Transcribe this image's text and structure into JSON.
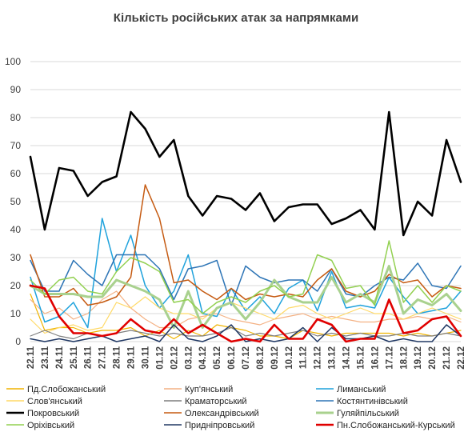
{
  "chart_data": {
    "type": "line",
    "title": "Кількість російських атак за напрямками",
    "xlabel": "",
    "ylabel": "",
    "ylim": [
      0,
      100
    ],
    "yticks": [
      0,
      10,
      20,
      30,
      40,
      50,
      60,
      70,
      80,
      90,
      100
    ],
    "grid": true,
    "legend_position": "bottom",
    "x": [
      "22.11",
      "23.11",
      "24.11",
      "25.11",
      "26.11",
      "27.11",
      "28.11",
      "29.11",
      "30.11",
      "01.12",
      "02.12",
      "03.12",
      "04.12",
      "05.12",
      "06.12",
      "07.12",
      "08.12",
      "09.12",
      "10.12",
      "11.12",
      "12.12",
      "13.12",
      "14.12",
      "15.12",
      "16.12",
      "17.12",
      "18.12",
      "19.12",
      "20.12",
      "21.12",
      "22.12"
    ],
    "series": [
      {
        "name": "Пд.Слобожанський",
        "color": "#f0b400",
        "width": 1.2,
        "values": [
          17,
          4,
          5,
          5,
          3,
          4,
          4,
          5,
          2,
          4,
          1,
          4,
          2,
          6,
          5,
          4,
          2,
          2,
          1,
          4,
          3,
          2,
          3,
          3,
          3,
          3,
          2,
          3,
          2,
          3,
          4
        ]
      },
      {
        "name": "Куп'янський",
        "color": "#f4b183",
        "width": 1.2,
        "values": [
          15,
          10,
          12,
          8,
          10,
          15,
          18,
          12,
          8,
          5,
          5,
          8,
          9,
          10,
          8,
          7,
          6,
          8,
          9,
          10,
          8,
          9,
          8,
          7,
          7,
          8,
          8,
          9,
          8,
          9,
          7
        ]
      },
      {
        "name": "Лиманський",
        "color": "#1fa2dc",
        "width": 1.5,
        "values": [
          23,
          7,
          9,
          14,
          5,
          44,
          25,
          38,
          20,
          12,
          18,
          31,
          10,
          9,
          19,
          11,
          16,
          10,
          19,
          22,
          11,
          25,
          12,
          13,
          12,
          23,
          16,
          10,
          11,
          12,
          18
        ]
      },
      {
        "name": "Слов'янський",
        "color": "#ffd966",
        "width": 1.2,
        "values": [
          8,
          3,
          5,
          6,
          4,
          5,
          14,
          12,
          16,
          12,
          10,
          10,
          8,
          12,
          14,
          12,
          10,
          8,
          12,
          13,
          10,
          8,
          10,
          12,
          10,
          10,
          8,
          10,
          12,
          10,
          8
        ]
      },
      {
        "name": "Краматорський",
        "color": "#7f7f7f",
        "width": 1.2,
        "values": [
          2,
          4,
          2,
          1,
          3,
          2,
          3,
          4,
          3,
          2,
          3,
          2,
          2,
          3,
          5,
          2,
          3,
          2,
          3,
          4,
          2,
          3,
          2,
          3,
          2,
          2,
          3,
          2,
          2,
          3,
          2
        ]
      },
      {
        "name": "Костянтинівський",
        "color": "#2e75b6",
        "width": 1.5,
        "values": [
          29,
          18,
          18,
          29,
          24,
          20,
          31,
          31,
          31,
          26,
          15,
          26,
          27,
          29,
          13,
          27,
          23,
          21,
          22,
          22,
          18,
          26,
          17,
          16,
          20,
          23,
          22,
          28,
          20,
          19,
          27
        ]
      },
      {
        "name": "Покровський",
        "color": "#000000",
        "width": 2.6,
        "values": [
          66,
          40,
          62,
          61,
          52,
          57,
          59,
          82,
          76,
          66,
          72,
          52,
          45,
          52,
          51,
          47,
          53,
          43,
          48,
          49,
          49,
          42,
          44,
          47,
          40,
          82,
          38,
          50,
          45,
          72,
          57
        ]
      },
      {
        "name": "Олександрівський",
        "color": "#c55a11",
        "width": 1.5,
        "values": [
          31,
          16,
          16,
          19,
          13,
          14,
          16,
          23,
          56,
          44,
          21,
          22,
          18,
          15,
          19,
          15,
          17,
          16,
          17,
          16,
          22,
          26,
          18,
          16,
          18,
          24,
          21,
          22,
          16,
          20,
          19
        ]
      },
      {
        "name": "Гуляйпільський",
        "color": "#a9d18e",
        "width": 3.0,
        "values": [
          20,
          17,
          17,
          17,
          16,
          16,
          22,
          20,
          18,
          15,
          5,
          18,
          5,
          12,
          14,
          8,
          14,
          22,
          16,
          14,
          14,
          23,
          14,
          17,
          14,
          27,
          10,
          15,
          13,
          17,
          11
        ]
      },
      {
        "name": "Оріхівський",
        "color": "#92d050",
        "width": 1.5,
        "values": [
          22,
          17,
          22,
          23,
          18,
          17,
          25,
          30,
          28,
          25,
          14,
          15,
          10,
          14,
          16,
          14,
          18,
          20,
          16,
          17,
          31,
          29,
          19,
          20,
          13,
          36,
          14,
          20,
          14,
          20,
          18
        ]
      },
      {
        "name": "Придніпровський",
        "color": "#203864",
        "width": 1.5,
        "values": [
          1,
          0,
          1,
          0,
          1,
          2,
          0,
          1,
          2,
          0,
          6,
          1,
          0,
          2,
          6,
          0,
          1,
          0,
          1,
          5,
          0,
          5,
          1,
          1,
          2,
          0,
          1,
          0,
          0,
          6,
          2
        ]
      },
      {
        "name": "Пн.Слобожанський-Курський",
        "color": "#e00000",
        "width": 2.6,
        "values": [
          20,
          19,
          9,
          3,
          3,
          2,
          3,
          8,
          4,
          3,
          8,
          3,
          6,
          3,
          0,
          1,
          0,
          6,
          1,
          1,
          8,
          6,
          0,
          1,
          1,
          15,
          3,
          4,
          8,
          9,
          2
        ]
      }
    ]
  }
}
